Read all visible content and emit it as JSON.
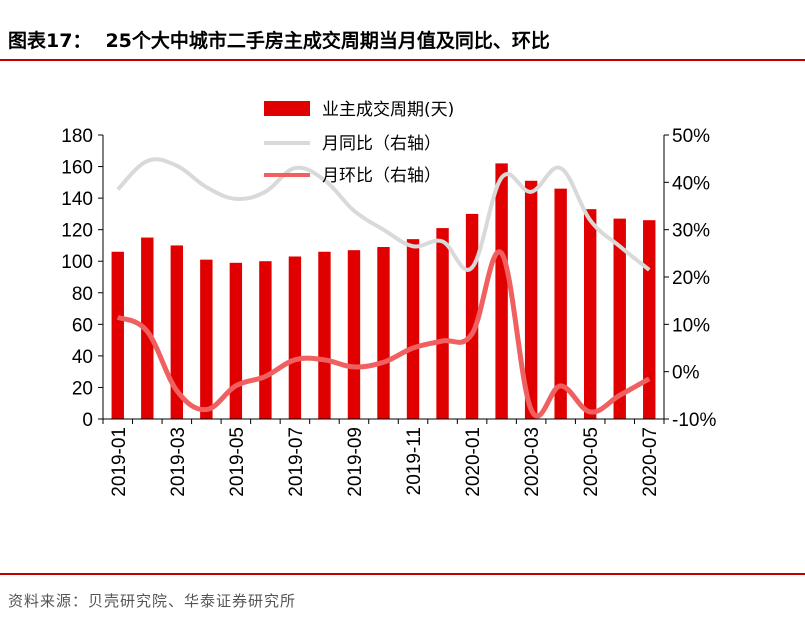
{
  "header": {
    "figure_no": "图表17：",
    "title": "25个大中城市二手房主成交周期当月值及同比、环比"
  },
  "footer": {
    "source": "资料来源：贝壳研究院、华泰证券研究所"
  },
  "colors": {
    "bar": "#e00000",
    "yoy_line": "#d9d9d9",
    "mom_line": "#f06060",
    "rule": "#c00000"
  },
  "chart_data": {
    "type": "bar",
    "x": [
      "2019-01",
      "2019-02",
      "2019-03",
      "2019-04",
      "2019-05",
      "2019-06",
      "2019-07",
      "2019-08",
      "2019-09",
      "2019-10",
      "2019-11",
      "2019-12",
      "2020-01",
      "2020-02",
      "2020-03",
      "2020-04",
      "2020-05",
      "2020-06",
      "2020-07"
    ],
    "x_tick_labels": [
      "2019-01",
      "2019-03",
      "2019-05",
      "2019-07",
      "2019-09",
      "2019-11",
      "2020-01",
      "2020-03",
      "2020-05",
      "2020-07"
    ],
    "y_left": {
      "min": 0,
      "max": 180,
      "ticks": [
        "0",
        "20",
        "40",
        "60",
        "80",
        "100",
        "120",
        "140",
        "160",
        "180"
      ]
    },
    "y_right": {
      "min": -10,
      "max": 50,
      "ticks": [
        "-10%",
        "0%",
        "10%",
        "20%",
        "30%",
        "40%",
        "50%"
      ]
    },
    "series": [
      {
        "name": "业主成交周期(天)",
        "type": "bar",
        "axis": "left",
        "values": [
          106,
          115,
          110,
          101,
          99,
          100,
          103,
          106,
          107,
          109,
          114,
          121,
          130,
          162,
          151,
          146,
          133,
          127,
          126
        ]
      },
      {
        "name": "月同比（右轴）",
        "type": "line",
        "axis": "right",
        "values": [
          38.5,
          44.5,
          43.5,
          39,
          36.5,
          38,
          43,
          40.5,
          34,
          30,
          26.5,
          27.5,
          22,
          41,
          38,
          43,
          32,
          26.5,
          21.5
        ]
      },
      {
        "name": "月环比（右轴）",
        "type": "line",
        "axis": "right",
        "values": [
          11.5,
          8.5,
          -4,
          -8,
          -3,
          -1,
          2.5,
          2.5,
          1,
          2,
          5,
          6.5,
          8,
          25,
          -8,
          -3,
          -8.5,
          -5,
          -1.5
        ]
      }
    ],
    "legend": "top-center"
  }
}
